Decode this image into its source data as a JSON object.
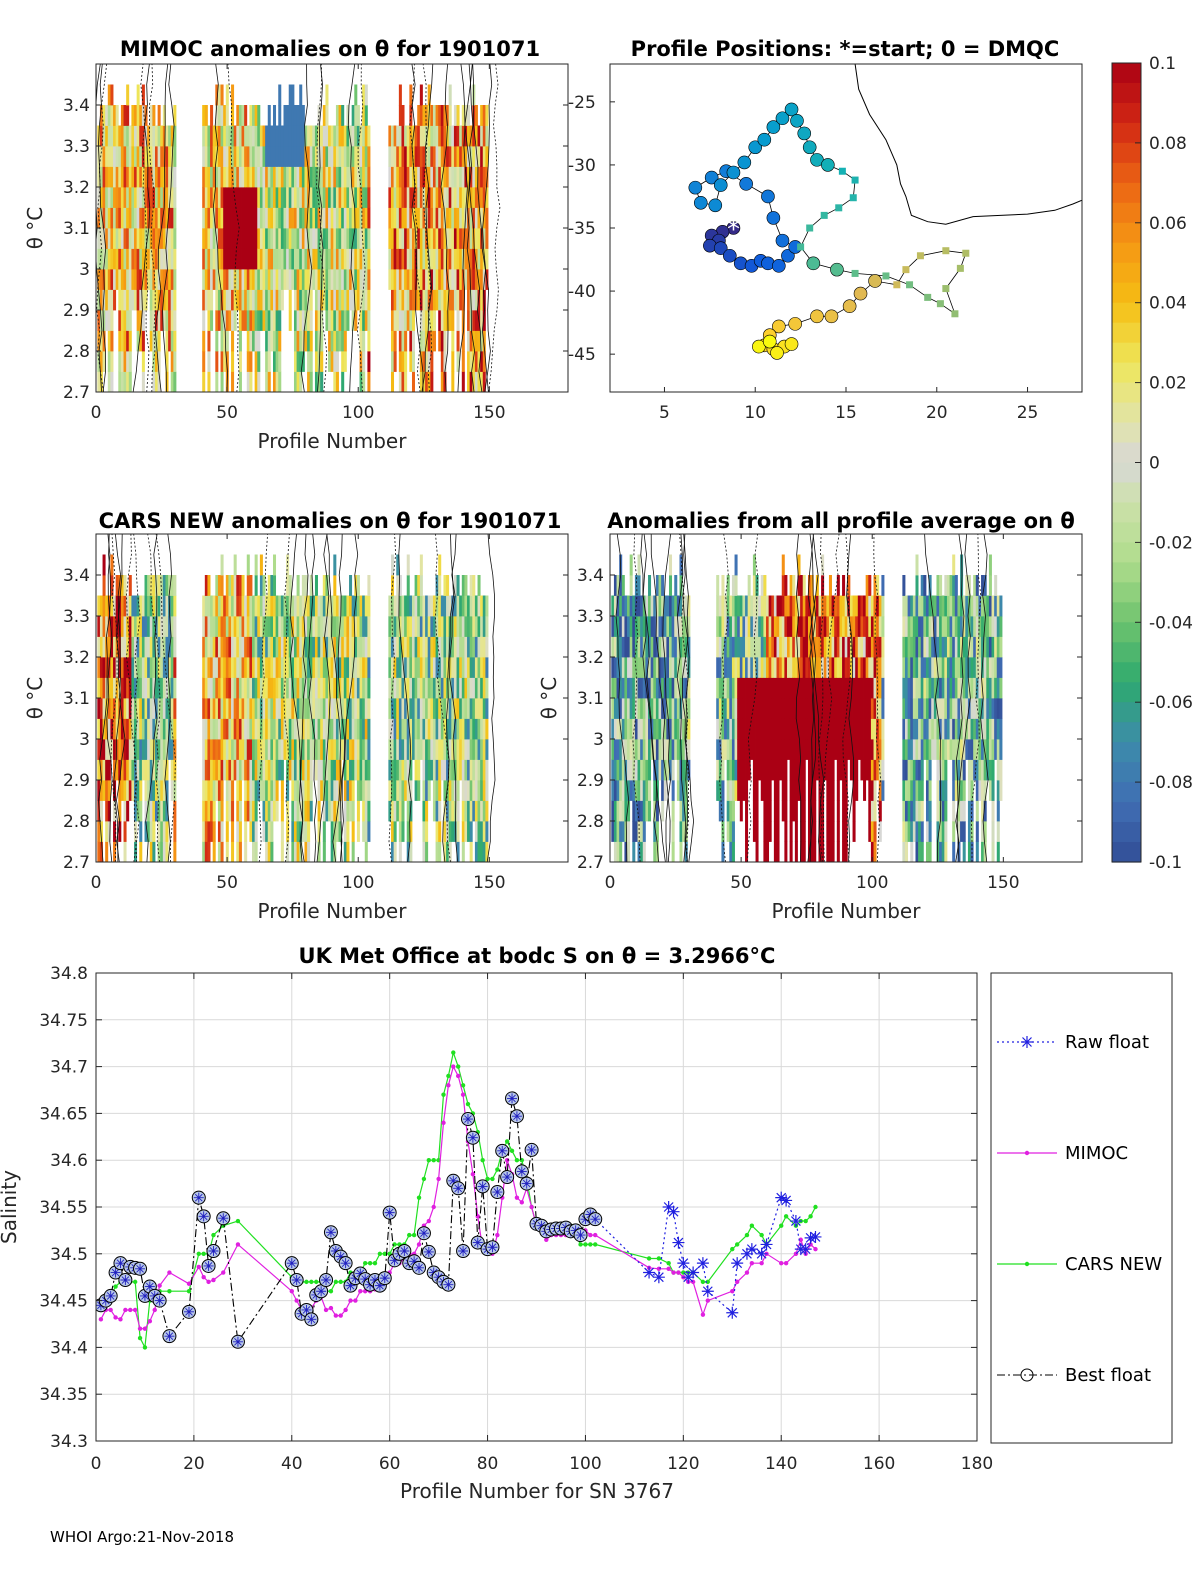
{
  "footer": "WHOI Argo:21-Nov-2018",
  "colorbar": {
    "ticks": [
      "0.1",
      "0.08",
      "0.06",
      "0.04",
      "0.02",
      "0",
      "-0.02",
      "-0.04",
      "-0.06",
      "-0.08",
      "-0.1"
    ],
    "range": [
      -0.1,
      0.1
    ]
  },
  "chart_data": [
    {
      "type": "heatmap",
      "title": "MIMOC anomalies on θ  for 1901071",
      "xlabel": "Profile Number",
      "ylabel": "θ °C",
      "xlim": [
        0,
        180
      ],
      "ylim": [
        2.7,
        3.5
      ],
      "xticks": [
        "0",
        "50",
        "100",
        "150"
      ],
      "yticks": [
        "2.7",
        "2.8",
        "2.9",
        "3",
        "3.1",
        "3.2",
        "3.3",
        "3.4"
      ],
      "profile_groups": [
        [
          1,
          30
        ],
        [
          41,
          104
        ],
        [
          112,
          149
        ]
      ]
    },
    {
      "type": "scatter",
      "title": "Profile Positions: *=start; 0 = DMQC",
      "xlim": [
        2,
        28
      ],
      "ylim": [
        -48,
        -22
      ],
      "xticks": [
        "5",
        "10",
        "15",
        "20",
        "25"
      ],
      "yticks": [
        "-25",
        "-30",
        "-35",
        "-40",
        "-45"
      ],
      "start_marker": "*"
    },
    {
      "type": "heatmap",
      "title": "CARS NEW anomalies on θ for 1901071",
      "xlabel": "Profile Number",
      "ylabel": "θ °C",
      "xlim": [
        0,
        180
      ],
      "ylim": [
        2.7,
        3.5
      ],
      "xticks": [
        "0",
        "50",
        "100",
        "150"
      ],
      "yticks": [
        "2.7",
        "2.8",
        "2.9",
        "3",
        "3.1",
        "3.2",
        "3.3",
        "3.4"
      ]
    },
    {
      "type": "heatmap",
      "title": "Anomalies from all profile average on θ",
      "xlabel": "Profile Number",
      "ylabel": "θ °C",
      "xlim": [
        0,
        180
      ],
      "ylim": [
        2.7,
        3.5
      ],
      "xticks": [
        "0",
        "50",
        "100",
        "150"
      ],
      "yticks": [
        "2.7",
        "2.8",
        "2.9",
        "3",
        "3.1",
        "3.2",
        "3.3",
        "3.4"
      ]
    },
    {
      "type": "line",
      "title": "UK Met Office at bodc S on θ = 3.2966°C",
      "xlabel": "Profile Number for SN 3767",
      "ylabel": "Salinity",
      "xlim": [
        0,
        180
      ],
      "ylim": [
        34.3,
        34.8
      ],
      "xticks": [
        "0",
        "20",
        "40",
        "60",
        "80",
        "100",
        "120",
        "140",
        "160",
        "180"
      ],
      "yticks": [
        "34.8",
        "34.75",
        "34.7",
        "34.65",
        "34.6",
        "34.55",
        "34.5",
        "34.45",
        "34.4",
        "34.35",
        "34.3"
      ],
      "legend": [
        "Raw float",
        "MIMOC",
        "CARS NEW",
        "Best float"
      ],
      "series": [
        {
          "name": "Best float",
          "x": [
            1,
            2,
            3,
            4,
            5,
            6,
            7,
            8,
            9,
            10,
            11,
            12,
            13,
            15,
            19,
            21,
            22,
            23,
            24,
            26,
            29,
            40,
            41,
            42,
            43,
            44,
            45,
            46,
            47,
            48,
            49,
            50,
            51,
            52,
            53,
            54,
            55,
            56,
            57,
            58,
            59,
            60,
            61,
            62,
            63,
            64,
            65,
            66,
            67,
            68,
            69,
            70,
            71,
            72,
            73,
            74,
            75,
            76,
            77,
            78,
            79,
            80,
            81,
            82,
            83,
            84,
            85,
            86,
            87,
            88,
            89,
            90,
            91,
            92,
            93,
            94,
            95,
            96,
            97,
            98,
            99,
            100,
            101,
            102
          ],
          "values": [
            34.445,
            34.45,
            34.455,
            34.48,
            34.49,
            34.472,
            34.486,
            34.485,
            34.484,
            34.455,
            34.465,
            34.455,
            34.45,
            34.412,
            34.438,
            34.56,
            34.54,
            34.487,
            34.503,
            34.538,
            34.406,
            34.49,
            34.472,
            34.436,
            34.44,
            34.43,
            34.456,
            34.46,
            34.472,
            34.523,
            34.503,
            34.497,
            34.49,
            34.466,
            34.474,
            34.479,
            34.473,
            34.467,
            34.472,
            34.466,
            34.474,
            34.544,
            34.493,
            34.5,
            34.503,
            34.49,
            34.492,
            34.485,
            34.522,
            34.502,
            34.48,
            34.475,
            34.47,
            34.467,
            34.578,
            34.57,
            34.503,
            34.644,
            34.624,
            34.512,
            34.572,
            34.505,
            34.507,
            34.566,
            34.61,
            34.582,
            34.666,
            34.647,
            34.588,
            34.575,
            34.611,
            34.532,
            34.53,
            34.524,
            34.526,
            34.527,
            34.527,
            34.528,
            34.524,
            34.525,
            34.52,
            34.537,
            34.542,
            34.537
          ]
        },
        {
          "name": "Raw float",
          "x": [
            102,
            113,
            115,
            117,
            118,
            119,
            120,
            121,
            122,
            124,
            125,
            130,
            131,
            133,
            134,
            136,
            137,
            140,
            141,
            143,
            144,
            145,
            146,
            147
          ],
          "values": [
            34.537,
            34.48,
            34.475,
            34.55,
            34.545,
            34.512,
            34.49,
            34.475,
            34.48,
            34.49,
            34.46,
            34.437,
            34.49,
            34.5,
            34.505,
            34.5,
            34.51,
            34.56,
            34.557,
            34.535,
            34.505,
            34.505,
            34.517,
            34.518
          ]
        },
        {
          "name": "MIMOC",
          "x": [
            1,
            2,
            3,
            4,
            5,
            6,
            7,
            8,
            9,
            10,
            11,
            12,
            13,
            15,
            19,
            21,
            22,
            23,
            24,
            26,
            29,
            40,
            41,
            42,
            43,
            44,
            45,
            46,
            47,
            48,
            49,
            50,
            51,
            52,
            53,
            54,
            55,
            56,
            57,
            58,
            59,
            60,
            61,
            62,
            63,
            64,
            65,
            66,
            67,
            68,
            69,
            70,
            71,
            72,
            73,
            74,
            75,
            76,
            77,
            78,
            79,
            80,
            81,
            82,
            83,
            84,
            85,
            86,
            87,
            88,
            89,
            90,
            91,
            92,
            93,
            94,
            95,
            96,
            97,
            98,
            99,
            100,
            101,
            102,
            113,
            115,
            117,
            118,
            119,
            120,
            121,
            122,
            124,
            125,
            130,
            131,
            133,
            134,
            136,
            137,
            140,
            141,
            143,
            144,
            145,
            146,
            147
          ],
          "values": [
            34.43,
            34.44,
            34.44,
            34.432,
            34.43,
            34.44,
            34.44,
            34.44,
            34.42,
            34.42,
            34.428,
            34.44,
            34.466,
            34.48,
            34.468,
            34.486,
            34.475,
            34.47,
            34.472,
            34.48,
            34.51,
            34.46,
            34.45,
            34.44,
            34.438,
            34.442,
            34.45,
            34.454,
            34.44,
            34.442,
            34.434,
            34.434,
            34.44,
            34.45,
            34.45,
            34.46,
            34.46,
            34.46,
            34.462,
            34.465,
            34.47,
            34.48,
            34.49,
            34.49,
            34.495,
            34.5,
            34.5,
            34.51,
            34.53,
            34.535,
            34.55,
            34.58,
            34.64,
            34.68,
            34.7,
            34.69,
            34.67,
            34.62,
            34.585,
            34.54,
            34.505,
            34.5,
            34.5,
            34.52,
            34.56,
            34.6,
            34.585,
            34.56,
            34.555,
            34.57,
            34.55,
            34.53,
            34.525,
            34.515,
            34.52,
            34.52,
            34.52,
            34.52,
            34.52,
            34.52,
            34.52,
            34.525,
            34.52,
            34.52,
            34.485,
            34.484,
            34.484,
            34.48,
            34.48,
            34.475,
            34.47,
            34.47,
            34.435,
            34.45,
            34.46,
            34.47,
            34.48,
            34.49,
            34.49,
            34.5,
            34.49,
            34.49,
            34.5,
            34.515,
            34.5,
            34.51,
            34.505
          ]
        },
        {
          "name": "CARS NEW",
          "x": [
            1,
            2,
            3,
            4,
            5,
            6,
            7,
            8,
            9,
            10,
            11,
            12,
            13,
            15,
            19,
            21,
            22,
            23,
            24,
            26,
            29,
            40,
            41,
            42,
            43,
            44,
            45,
            46,
            47,
            48,
            49,
            50,
            51,
            52,
            53,
            54,
            55,
            56,
            57,
            58,
            59,
            60,
            61,
            62,
            63,
            64,
            65,
            66,
            67,
            68,
            69,
            70,
            71,
            72,
            73,
            74,
            75,
            76,
            77,
            78,
            79,
            80,
            81,
            82,
            83,
            84,
            85,
            86,
            87,
            88,
            89,
            90,
            91,
            92,
            93,
            94,
            95,
            96,
            97,
            98,
            99,
            100,
            101,
            102,
            113,
            115,
            117,
            118,
            119,
            120,
            121,
            122,
            124,
            125,
            130,
            131,
            133,
            134,
            136,
            137,
            140,
            141,
            143,
            144,
            145,
            146,
            147
          ],
          "values": [
            34.44,
            34.45,
            34.455,
            34.465,
            34.47,
            34.47,
            34.47,
            34.47,
            34.41,
            34.4,
            34.45,
            34.455,
            34.46,
            34.46,
            34.46,
            34.5,
            34.5,
            34.5,
            34.52,
            34.53,
            34.535,
            34.475,
            34.47,
            34.47,
            34.47,
            34.47,
            34.47,
            34.47,
            34.46,
            34.46,
            34.47,
            34.47,
            34.47,
            34.48,
            34.48,
            34.48,
            34.49,
            34.49,
            34.49,
            34.5,
            34.5,
            34.5,
            34.51,
            34.51,
            34.51,
            34.52,
            34.52,
            34.56,
            34.58,
            34.6,
            34.6,
            34.6,
            34.67,
            34.69,
            34.715,
            34.7,
            34.68,
            34.66,
            34.65,
            34.63,
            34.6,
            34.58,
            34.58,
            34.59,
            34.61,
            34.62,
            34.61,
            34.6,
            34.6,
            34.58,
            34.55,
            34.53,
            34.53,
            34.53,
            34.53,
            34.53,
            34.53,
            34.53,
            34.53,
            34.52,
            34.51,
            34.51,
            34.51,
            34.51,
            34.495,
            34.495,
            34.49,
            34.48,
            34.48,
            34.48,
            34.48,
            34.48,
            34.47,
            34.47,
            34.505,
            34.51,
            34.52,
            34.53,
            34.52,
            34.51,
            34.53,
            34.54,
            34.53,
            34.535,
            34.535,
            34.54,
            34.55
          ]
        }
      ]
    }
  ]
}
